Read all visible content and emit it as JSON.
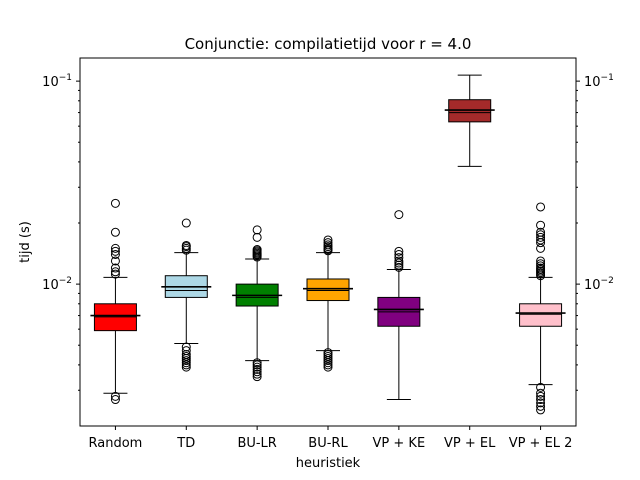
{
  "chart_data": {
    "type": "box",
    "title": "Conjunctie: compilatietijd voor r = 4.0",
    "xlabel": "heuristiek",
    "ylabel": "tijd (s)",
    "yscale": "log",
    "ylim": [
      0.002,
      0.13
    ],
    "yticks": [
      {
        "value": 0.01,
        "base": "10",
        "exp": "−2"
      },
      {
        "value": 0.1,
        "base": "10",
        "exp": "−1"
      }
    ],
    "secondary_y_axis": true,
    "grid": false,
    "categories": [
      "Random",
      "TD",
      "BU-LR",
      "BU-RL",
      "VP + KE",
      "VP + EL",
      "VP + EL 2"
    ],
    "series": [
      {
        "category": "Random",
        "color": "#ff0000",
        "whisker_low": 0.0029,
        "q1": 0.0059,
        "median": 0.0069,
        "q3": 0.008,
        "whisker_high": 0.0108,
        "mean": 0.007,
        "outliers_high": [
          0.0112,
          0.0115,
          0.012,
          0.013,
          0.014,
          0.0145,
          0.015,
          0.018,
          0.025
        ],
        "outliers_low": [
          0.0028,
          0.0027
        ]
      },
      {
        "category": "TD",
        "color": "#add8e6",
        "whisker_low": 0.0051,
        "q1": 0.0086,
        "median": 0.0093,
        "q3": 0.011,
        "whisker_high": 0.0143,
        "mean": 0.0097,
        "outliers_high": [
          0.0147,
          0.015,
          0.0153,
          0.0155,
          0.02
        ],
        "outliers_low": [
          0.0049,
          0.0047,
          0.0045,
          0.0044,
          0.0043,
          0.0042,
          0.0041,
          0.004,
          0.0039
        ]
      },
      {
        "category": "BU-LR",
        "color": "#008000",
        "whisker_low": 0.0042,
        "q1": 0.0078,
        "median": 0.0086,
        "q3": 0.01,
        "whisker_high": 0.0133,
        "mean": 0.0088,
        "outliers_high": [
          0.0136,
          0.0138,
          0.014,
          0.0142,
          0.0144,
          0.0146,
          0.0148,
          0.017,
          0.0185
        ],
        "outliers_low": [
          0.0041,
          0.004,
          0.0039,
          0.0038,
          0.0037,
          0.0036,
          0.0035
        ]
      },
      {
        "category": "BU-RL",
        "color": "#ffa500",
        "whisker_low": 0.0047,
        "q1": 0.0083,
        "median": 0.0093,
        "q3": 0.0106,
        "whisker_high": 0.0143,
        "mean": 0.0095,
        "outliers_high": [
          0.0146,
          0.0148,
          0.015,
          0.0153,
          0.0156,
          0.016,
          0.0165
        ],
        "outliers_low": [
          0.0046,
          0.0045,
          0.0044,
          0.0043,
          0.0042,
          0.0041,
          0.004,
          0.0039
        ]
      },
      {
        "category": "VP + KE",
        "color": "#800080",
        "whisker_low": 0.0027,
        "q1": 0.0062,
        "median": 0.0073,
        "q3": 0.0086,
        "whisker_high": 0.0118,
        "mean": 0.0075,
        "outliers_high": [
          0.0121,
          0.0124,
          0.0127,
          0.013,
          0.0135,
          0.014,
          0.0145,
          0.022
        ],
        "outliers_low": []
      },
      {
        "category": "VP + EL",
        "color": "#a52a2a",
        "whisker_low": 0.038,
        "q1": 0.063,
        "median": 0.07,
        "q3": 0.081,
        "whisker_high": 0.107,
        "mean": 0.072,
        "outliers_high": [],
        "outliers_low": []
      },
      {
        "category": "VP + EL 2",
        "color": "#ffc0cb",
        "whisker_low": 0.0032,
        "q1": 0.0062,
        "median": 0.0071,
        "q3": 0.008,
        "whisker_high": 0.0108,
        "mean": 0.0072,
        "outliers_high": [
          0.011,
          0.0112,
          0.0114,
          0.0116,
          0.0118,
          0.012,
          0.0123,
          0.0126,
          0.013,
          0.015,
          0.016,
          0.0165,
          0.017,
          0.0175,
          0.018,
          0.0195,
          0.024
        ],
        "outliers_low": [
          0.0031,
          0.0029,
          0.0028,
          0.0027,
          0.0026,
          0.0025,
          0.0024
        ]
      }
    ]
  }
}
